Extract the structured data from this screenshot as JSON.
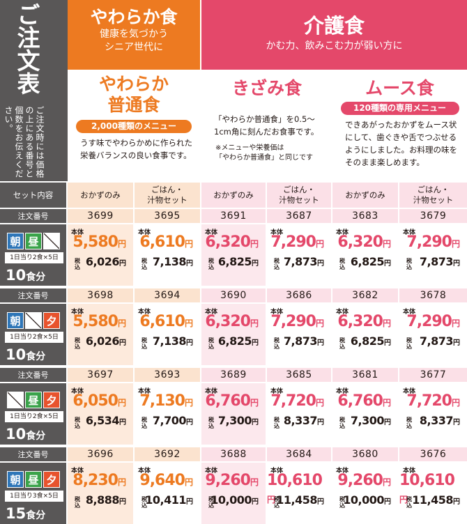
{
  "title": "ご注文表",
  "side_note": "ご注文時には価格の上にある番号と個数をお伝えください。",
  "categories": {
    "soft": {
      "name": "やわらか食",
      "sub1": "健康を気づかう",
      "sub2": "シニア世代に"
    },
    "care": {
      "name": "介護食",
      "sub": "かむ力、飲みこむ力が弱い方に"
    }
  },
  "panels": {
    "soft": {
      "name1": "やわらか",
      "name2": "普通食",
      "pill": "2,000種類のメニュー",
      "desc": "うす味でやわらかめに作られた栄養バランスの良い食事です。"
    },
    "kizami": {
      "name": "きざみ食",
      "desc": "「やわらか普通食」を0.5〜1cm角に刻んだお食事です。",
      "note1": "※メニューや栄養価は",
      "note2": "「やわらか普通食」と同じです"
    },
    "mousse": {
      "name": "ムース食",
      "pill": "120種類の専用メニュー",
      "desc": "できあがったおかずをムース状にして、歯ぐきや舌でつぶせるようにしました。お料理の味をそのまま楽しめます。"
    }
  },
  "table": {
    "header_label": "セット内容",
    "columns": [
      "おかずのみ",
      "ごはん・汁物セット",
      "おかずのみ",
      "ごはん・汁物セット",
      "おかずのみ",
      "ごはん・汁物セット"
    ],
    "col_line1": [
      "おかずのみ",
      "ごはん・",
      "おかずのみ",
      "ごはん・",
      "おかずのみ",
      "ごはん・"
    ],
    "col_line2": [
      "",
      "汁物セット",
      "",
      "汁物セット",
      "",
      "汁物セット"
    ],
    "order_label": "注文番号",
    "base_label": "本体",
    "tax_label": "税込",
    "yen": "円",
    "rows": [
      {
        "meals": [
          "朝",
          "昼",
          ""
        ],
        "per_day": "1日当り2食×5日",
        "count": "10",
        "count_unit": "食分",
        "codes": [
          "3699",
          "3695",
          "3691",
          "3687",
          "3683",
          "3679"
        ],
        "prices": [
          "5,580",
          "6,610",
          "6,320",
          "7,290",
          "6,320",
          "7,290"
        ],
        "tax": [
          "6,026",
          "7,138",
          "6,825",
          "7,873",
          "6,825",
          "7,873"
        ]
      },
      {
        "meals": [
          "朝",
          "",
          "夕"
        ],
        "per_day": "1日当り2食×5日",
        "count": "10",
        "count_unit": "食分",
        "codes": [
          "3698",
          "3694",
          "3690",
          "3686",
          "3682",
          "3678"
        ],
        "prices": [
          "5,580",
          "6,610",
          "6,320",
          "7,290",
          "6,320",
          "7,290"
        ],
        "tax": [
          "6,026",
          "7,138",
          "6,825",
          "7,873",
          "6,825",
          "7,873"
        ]
      },
      {
        "meals": [
          "",
          "昼",
          "夕"
        ],
        "per_day": "1日当り2食×5日",
        "count": "10",
        "count_unit": "食分",
        "codes": [
          "3697",
          "3693",
          "3689",
          "3685",
          "3681",
          "3677"
        ],
        "prices": [
          "6,050",
          "7,130",
          "6,760",
          "7,720",
          "6,760",
          "7,720"
        ],
        "tax": [
          "6,534",
          "7,700",
          "7,300",
          "8,337",
          "7,300",
          "8,337"
        ]
      },
      {
        "meals": [
          "朝",
          "昼",
          "夕"
        ],
        "per_day": "1日当り3食×5日",
        "count": "15",
        "count_unit": "食分",
        "codes": [
          "3696",
          "3692",
          "3688",
          "3684",
          "3680",
          "3676"
        ],
        "prices": [
          "8,230",
          "9,640",
          "9,260",
          "10,610",
          "9,260",
          "10,610"
        ],
        "tax": [
          "8,888",
          "10,411",
          "10,000",
          "11,458",
          "10,000",
          "11,458"
        ]
      }
    ]
  },
  "colors": {
    "orange": "#ed7a21",
    "pink": "#e4486a",
    "gray": "#595757",
    "breakfast": "#2e76b8",
    "lunch": "#3aa34a",
    "dinner": "#e8532d"
  }
}
